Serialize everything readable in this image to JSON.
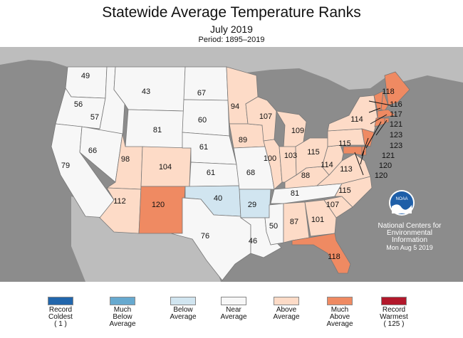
{
  "header": {
    "title": "Statewide Average Temperature Ranks",
    "subtitle": "July 2019",
    "period": "Period: 1895–2019"
  },
  "colors": {
    "record_coldest": "#2166ac",
    "much_below": "#67a9cf",
    "below": "#d1e5f0",
    "near": "#f7f7f7",
    "above": "#fddbc7",
    "much_above": "#ef8a62",
    "record_warmest": "#b2182b",
    "ocean": "#8c8c8c",
    "land_background": "#bdbdbd"
  },
  "legend": [
    {
      "label": "Record\nColdest\n( 1 )",
      "color": "#2166ac"
    },
    {
      "label": "Much\nBelow\nAverage",
      "color": "#67a9cf"
    },
    {
      "label": "Below\nAverage",
      "color": "#d1e5f0"
    },
    {
      "label": "Near\nAverage",
      "color": "#f7f7f7"
    },
    {
      "label": "Above\nAverage",
      "color": "#fddbc7"
    },
    {
      "label": "Much\nAbove\nAverage",
      "color": "#ef8a62"
    },
    {
      "label": "Record\nWarmest\n( 125 )",
      "color": "#b2182b"
    }
  ],
  "ranks": {
    "WA": "49",
    "OR": "56",
    "CA": "79",
    "ID": "57",
    "NV": "66",
    "MT": "43",
    "WY": "81",
    "UT": "98",
    "AZ": "112",
    "CO": "104",
    "NM": "120",
    "ND": "67",
    "SD": "60",
    "NE": "61",
    "KS": "61",
    "OK": "40",
    "TX": "76",
    "MN": "94",
    "IA": "89",
    "MO": "68",
    "AR": "29",
    "LA": "46",
    "WI": "107",
    "IL": "100",
    "MS": "50",
    "MI": "109",
    "IN": "103",
    "KY": "88",
    "TN": "81",
    "AL": "87",
    "GA": "101",
    "FL": "118",
    "SC": "107",
    "NC": "115",
    "VA": "113",
    "WV": "114",
    "OH": "115",
    "PA": "115",
    "NY": "114",
    "ME": "118",
    "NH": "116",
    "VT": "117",
    "MA": "121",
    "RI": "123",
    "CT": "123",
    "NJ": "121",
    "DE": "120",
    "MD": "120"
  },
  "logo_text": "NOAA",
  "credit": {
    "line1": "National Centers for",
    "line2": "Environmental",
    "line3": "Information",
    "date": "Mon Aug  5 2019"
  }
}
